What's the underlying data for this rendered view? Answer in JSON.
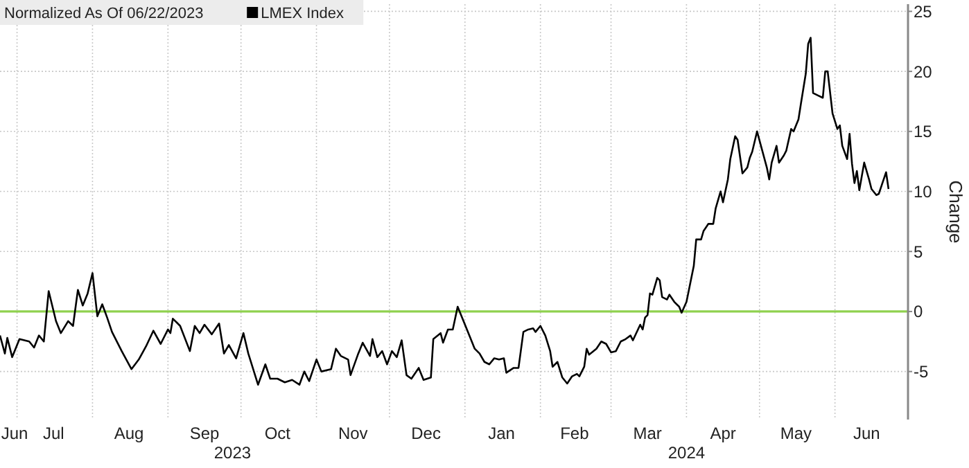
{
  "chart_data": {
    "type": "line",
    "title": "Normalized As Of 06/22/2023",
    "ylabel": "Change",
    "legend": "top left",
    "grid": true,
    "line_style": "solid",
    "xlim": [
      "2023-06-24",
      "2024-07-01"
    ],
    "xticks": [
      {
        "value": "2023-06-30",
        "label": "Jun"
      },
      {
        "value": "2023-07-01",
        "label": null
      },
      {
        "value": "2023-07-16",
        "label": "Jul"
      },
      {
        "value": "2023-08-01",
        "label": null
      },
      {
        "value": "2023-08-16",
        "label": "Aug"
      },
      {
        "value": "2023-09-01",
        "label": null
      },
      {
        "value": "2023-09-16",
        "label": "Sep"
      },
      {
        "value": "2023-10-01",
        "label": null
      },
      {
        "value": "2023-10-16",
        "label": "Oct"
      },
      {
        "value": "2023-11-01",
        "label": null
      },
      {
        "value": "2023-11-16",
        "label": "Nov"
      },
      {
        "value": "2023-12-01",
        "label": null
      },
      {
        "value": "2023-12-16",
        "label": "Dec"
      },
      {
        "value": "2024-01-01",
        "label": null
      },
      {
        "value": "2024-01-16",
        "label": "Jan"
      },
      {
        "value": "2024-02-01",
        "label": null
      },
      {
        "value": "2024-02-15",
        "label": "Feb"
      },
      {
        "value": "2024-03-01",
        "label": null
      },
      {
        "value": "2024-03-16",
        "label": "Mar"
      },
      {
        "value": "2024-04-01",
        "label": null
      },
      {
        "value": "2024-04-16",
        "label": "Apr"
      },
      {
        "value": "2024-05-01",
        "label": null
      },
      {
        "value": "2024-05-16",
        "label": "May"
      },
      {
        "value": "2024-06-01",
        "label": null
      },
      {
        "value": "2024-06-14",
        "label": "Jun"
      }
    ],
    "ylim": [
      -9,
      25.6
    ],
    "yticks": [
      -5,
      0,
      5,
      10,
      15,
      20,
      25
    ],
    "annotations": [
      "2023",
      "2024"
    ],
    "ref_lines": [
      {
        "axis": "y",
        "value": 0,
        "color": "#8fd14f"
      }
    ],
    "series": [
      {
        "name": "LMEX Index",
        "color": "#000000",
        "x": [
          "2023-06-24",
          "2023-06-26",
          "2023-06-27",
          "2023-06-29",
          "2023-07-02",
          "2023-07-06",
          "2023-07-08",
          "2023-07-10",
          "2023-07-12",
          "2023-07-14",
          "2023-07-17",
          "2023-07-19",
          "2023-07-22",
          "2023-07-24",
          "2023-07-26",
          "2023-07-28",
          "2023-07-30",
          "2023-08-01",
          "2023-08-03",
          "2023-08-05",
          "2023-08-07",
          "2023-08-09",
          "2023-08-13",
          "2023-08-17",
          "2023-08-20",
          "2023-08-23",
          "2023-08-26",
          "2023-08-29",
          "2023-09-01",
          "2023-09-02",
          "2023-09-03",
          "2023-09-06",
          "2023-09-10",
          "2023-09-12",
          "2023-09-14",
          "2023-09-16",
          "2023-09-19",
          "2023-09-22",
          "2023-09-24",
          "2023-09-26",
          "2023-09-29",
          "2023-10-02",
          "2023-10-04",
          "2023-10-06",
          "2023-10-08",
          "2023-10-11",
          "2023-10-13",
          "2023-10-16",
          "2023-10-19",
          "2023-10-22",
          "2023-10-25",
          "2023-10-27",
          "2023-10-29",
          "2023-11-01",
          "2023-11-03",
          "2023-11-07",
          "2023-11-09",
          "2023-11-11",
          "2023-11-14",
          "2023-11-15",
          "2023-11-18",
          "2023-11-20",
          "2023-11-23",
          "2023-11-24",
          "2023-11-26",
          "2023-11-28",
          "2023-11-30",
          "2023-12-02",
          "2023-12-04",
          "2023-12-06",
          "2023-12-08",
          "2023-12-10",
          "2023-12-13",
          "2023-12-15",
          "2023-12-18",
          "2023-12-19",
          "2023-12-22",
          "2023-12-23",
          "2023-12-25",
          "2023-12-27",
          "2023-12-29",
          "2023-12-31",
          "2024-01-03",
          "2024-01-05",
          "2024-01-07",
          "2024-01-09",
          "2024-01-11",
          "2024-01-13",
          "2024-01-15",
          "2024-01-17",
          "2024-01-18",
          "2024-01-21",
          "2024-01-23",
          "2024-01-25",
          "2024-01-27",
          "2024-01-29",
          "2024-01-30",
          "2024-02-01",
          "2024-02-03",
          "2024-02-05",
          "2024-02-06",
          "2024-02-08",
          "2024-02-10",
          "2024-02-12",
          "2024-02-14",
          "2024-02-16",
          "2024-02-17",
          "2024-02-19",
          "2024-02-20",
          "2024-02-21",
          "2024-02-24",
          "2024-02-26",
          "2024-02-28",
          "2024-03-01",
          "2024-03-03",
          "2024-03-05",
          "2024-03-07",
          "2024-03-09",
          "2024-03-10",
          "2024-03-13",
          "2024-03-14",
          "2024-03-15",
          "2024-03-16",
          "2024-03-17",
          "2024-03-18",
          "2024-03-20",
          "2024-03-21",
          "2024-03-22",
          "2024-03-24",
          "2024-03-25",
          "2024-03-27",
          "2024-03-29",
          "2024-03-30",
          "2024-04-01",
          "2024-04-02",
          "2024-04-04",
          "2024-04-05",
          "2024-04-07",
          "2024-04-08",
          "2024-04-10",
          "2024-04-12",
          "2024-04-13",
          "2024-04-15",
          "2024-04-16",
          "2024-04-18",
          "2024-04-19",
          "2024-04-21",
          "2024-04-22",
          "2024-04-24",
          "2024-04-26",
          "2024-04-27",
          "2024-04-28",
          "2024-04-30",
          "2024-05-02",
          "2024-05-04",
          "2024-05-05",
          "2024-05-06",
          "2024-05-08",
          "2024-05-09",
          "2024-05-11",
          "2024-05-12",
          "2024-05-14",
          "2024-05-15",
          "2024-05-17",
          "2024-05-18",
          "2024-05-20",
          "2024-05-21",
          "2024-05-22",
          "2024-05-23",
          "2024-05-25",
          "2024-05-27",
          "2024-05-28",
          "2024-05-29",
          "2024-05-31",
          "2024-06-02",
          "2024-06-03",
          "2024-06-04",
          "2024-06-06",
          "2024-06-07",
          "2024-06-08",
          "2024-06-09",
          "2024-06-10",
          "2024-06-11",
          "2024-06-13",
          "2024-06-15",
          "2024-06-16",
          "2024-06-18",
          "2024-06-19",
          "2024-06-21",
          "2024-06-22",
          "2024-06-23"
        ],
        "values": [
          -2.0,
          -3.5,
          -2.2,
          -3.8,
          -2.3,
          -2.5,
          -3.0,
          -2.0,
          -2.5,
          1.7,
          -0.8,
          -1.8,
          -0.8,
          -1.2,
          1.8,
          0.5,
          1.5,
          3.2,
          -0.4,
          0.6,
          -0.5,
          -1.7,
          -3.3,
          -4.8,
          -4.0,
          -2.9,
          -1.6,
          -2.7,
          -1.5,
          -1.8,
          -0.6,
          -1.2,
          -3.3,
          -1.2,
          -1.8,
          -1.1,
          -1.9,
          -1.0,
          -3.5,
          -2.8,
          -3.9,
          -1.8,
          -3.5,
          -4.8,
          -6.1,
          -4.4,
          -5.6,
          -5.6,
          -5.9,
          -5.7,
          -6.1,
          -5.0,
          -5.8,
          -4.0,
          -5.0,
          -4.8,
          -3.1,
          -3.7,
          -4.0,
          -5.3,
          -3.6,
          -2.6,
          -3.7,
          -2.3,
          -3.8,
          -3.3,
          -4.4,
          -3.3,
          -3.8,
          -2.4,
          -5.3,
          -5.6,
          -4.7,
          -5.7,
          -5.5,
          -2.3,
          -1.8,
          -2.6,
          -1.5,
          -1.5,
          0.4,
          -0.6,
          -2.1,
          -3.1,
          -3.5,
          -4.2,
          -4.4,
          -3.9,
          -4.0,
          -3.9,
          -5.1,
          -4.7,
          -4.7,
          -1.7,
          -1.5,
          -1.4,
          -1.7,
          -1.2,
          -2.0,
          -3.3,
          -4.6,
          -4.2,
          -5.5,
          -6.0,
          -5.4,
          -5.2,
          -5.4,
          -4.6,
          -3.1,
          -3.6,
          -3.1,
          -2.5,
          -2.7,
          -3.4,
          -3.3,
          -2.5,
          -2.3,
          -2.0,
          -2.4,
          -1.1,
          -1.5,
          -0.5,
          -0.3,
          1.5,
          1.4,
          2.8,
          2.6,
          1.2,
          1.0,
          1.4,
          0.8,
          0.4,
          -0.1,
          0.8,
          1.8,
          3.8,
          6.0,
          6.0,
          6.7,
          7.3,
          7.3,
          8.6,
          10.0,
          9.1,
          11.0,
          12.7,
          14.6,
          14.3,
          11.5,
          12.0,
          12.8,
          13.3,
          15.0,
          13.5,
          12.0,
          11.0,
          12.4,
          13.8,
          12.4,
          13.0,
          13.4,
          15.2,
          15.0,
          16.0,
          17.3,
          19.8,
          22.3,
          22.8,
          18.2,
          18.0,
          17.8,
          20.0,
          20.0,
          16.5,
          15.2,
          15.5,
          13.8,
          12.7,
          14.8,
          12.3,
          10.7,
          11.7,
          10.1,
          12.4,
          11.0,
          10.2,
          9.7,
          9.8,
          11.0,
          11.6,
          10.2
        ]
      }
    ]
  }
}
